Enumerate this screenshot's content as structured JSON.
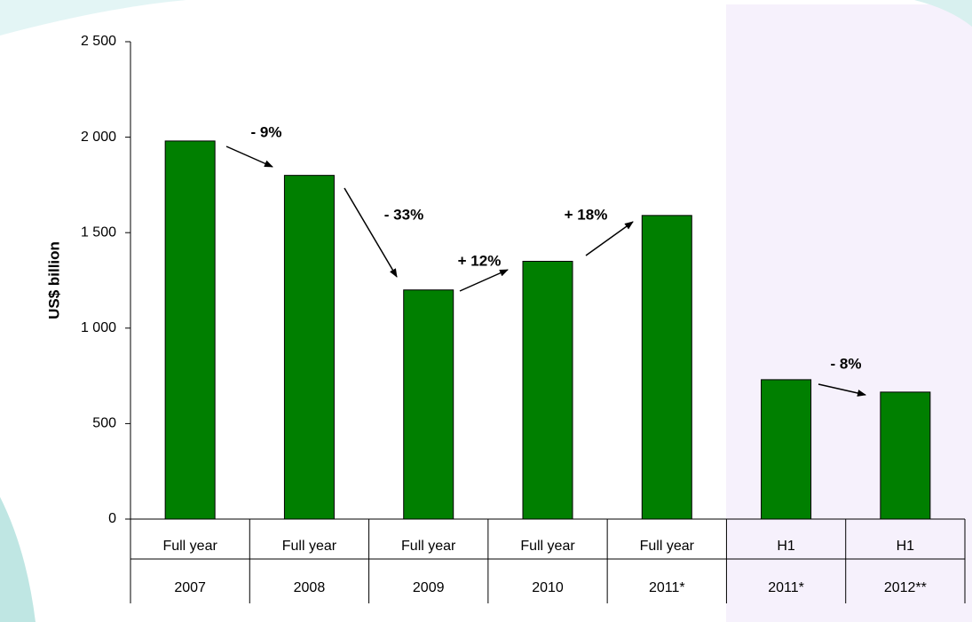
{
  "chart_data": {
    "type": "bar",
    "y_axis_label": "US$ billion",
    "categories": [
      [
        "Full year",
        "2007"
      ],
      [
        "Full year",
        "2008"
      ],
      [
        "Full year",
        "2009"
      ],
      [
        "Full year",
        "2010"
      ],
      [
        "Full year",
        "2011*"
      ],
      [
        "H1",
        "2011*"
      ],
      [
        "H1",
        "2012**"
      ]
    ],
    "values": [
      1980,
      1800,
      1200,
      1350,
      1590,
      730,
      665
    ],
    "color": "#007f00",
    "ylim": [
      0,
      2500
    ],
    "yticks": [
      0,
      500,
      {
        "value": 1000,
        "label": "1 000"
      },
      {
        "value": 1500,
        "label": "1 500"
      },
      {
        "value": 2000,
        "label": "2 000"
      },
      {
        "value": 2500,
        "label": "2 500"
      }
    ],
    "annotations": [
      "- 9%",
      "- 33%",
      "+ 12%",
      "+ 18%",
      "- 8%"
    ]
  }
}
